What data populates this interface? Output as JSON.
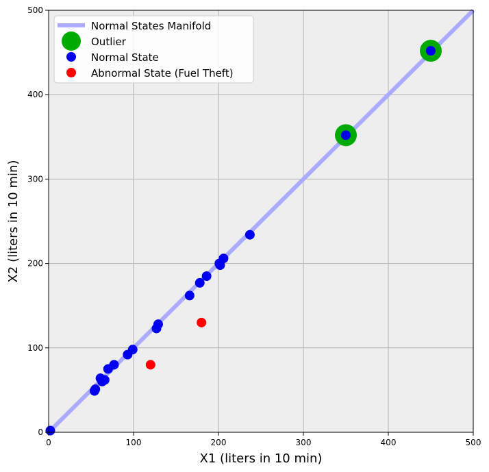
{
  "chart_data": {
    "type": "scatter",
    "title": "",
    "xlabel": "X1 (liters in 10 min)",
    "ylabel": "X2 (liters in 10 min)",
    "xlim": [
      0,
      500
    ],
    "ylim": [
      0,
      500
    ],
    "xticks": [
      0,
      100,
      200,
      300,
      400,
      500
    ],
    "yticks": [
      0,
      100,
      200,
      300,
      400,
      500
    ],
    "grid": true,
    "legend_position": "top-left",
    "background": "#eeeeee",
    "series": [
      {
        "name": "Normal States Manifold",
        "kind": "line",
        "color": "#aaaaff",
        "x": [
          0,
          500
        ],
        "y": [
          0,
          500
        ]
      },
      {
        "name": "Outlier",
        "kind": "marker-large",
        "color": "#00aa00",
        "x": [
          350,
          450
        ],
        "y": [
          352,
          452
        ]
      },
      {
        "name": "Normal State",
        "kind": "marker",
        "color": "#0000ee",
        "x": [
          2,
          54,
          55,
          61,
          63,
          66,
          70,
          77,
          93,
          99,
          127,
          129,
          166,
          178,
          186,
          201,
          202,
          206,
          237,
          350,
          450
        ],
        "y": [
          2,
          49,
          51,
          64,
          60,
          62,
          75,
          80,
          92,
          98,
          123,
          128,
          162,
          177,
          185,
          200,
          198,
          206,
          234,
          352,
          452
        ]
      },
      {
        "name": "Abnormal State (Fuel Theft)",
        "kind": "marker",
        "color": "#ff0000",
        "x": [
          120,
          180
        ],
        "y": [
          80,
          130
        ]
      }
    ]
  }
}
